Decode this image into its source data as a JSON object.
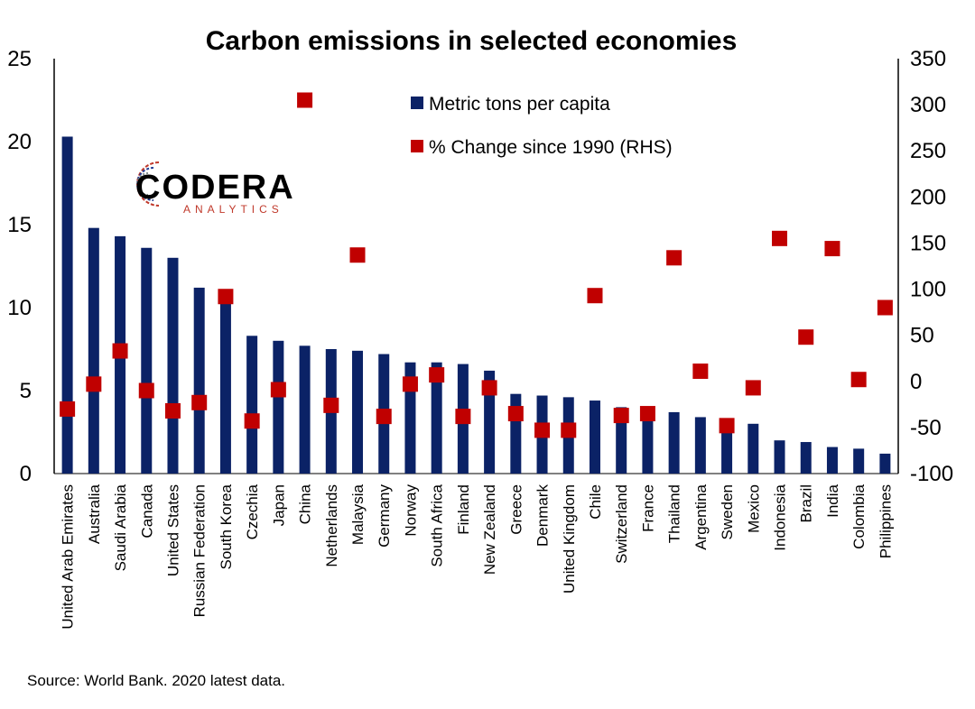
{
  "chart_data": {
    "type": "bar",
    "title": "Carbon emissions in selected economies",
    "categories": [
      "United Arab Emirates",
      "Australia",
      "Saudi Arabia",
      "Canada",
      "United States",
      "Russian Federation",
      "South Korea",
      "Czechia",
      "Japan",
      "China",
      "Netherlands",
      "Malaysia",
      "Germany",
      "Norway",
      "South Africa",
      "Finland",
      "New Zealand",
      "Greece",
      "Denmark",
      "United Kingdom",
      "Chile",
      "Switzerland",
      "France",
      "Thailand",
      "Argentina",
      "Sweden",
      "Mexico",
      "Indonesia",
      "Brazil",
      "India",
      "Colombia",
      "Philippines"
    ],
    "series": [
      {
        "name": "Metric tons per capita",
        "type": "bar",
        "axis": "left",
        "color": "#0b2266",
        "values": [
          20.3,
          14.8,
          14.3,
          13.6,
          13.0,
          11.2,
          10.7,
          8.3,
          8.0,
          7.7,
          7.5,
          7.4,
          7.2,
          6.7,
          6.7,
          6.6,
          6.2,
          4.8,
          4.7,
          4.6,
          4.4,
          4.0,
          3.8,
          3.7,
          3.4,
          3.1,
          3.0,
          2.0,
          1.9,
          1.6,
          1.5,
          1.2
        ]
      },
      {
        "name": "% Change since 1990 (RHS)",
        "type": "scatter",
        "axis": "right",
        "color": "#c00000",
        "values": [
          -30,
          -3,
          33,
          -10,
          -32,
          -23,
          92,
          -43,
          -9,
          305,
          -26,
          137,
          -38,
          -3,
          7,
          -38,
          -7,
          -35,
          -53,
          -53,
          93,
          -37,
          -35,
          134,
          11,
          -48,
          -7,
          155,
          48,
          144,
          2,
          80
        ]
      }
    ],
    "y_left": {
      "min": 0,
      "max": 25,
      "ticks": [
        "0",
        "5",
        "10",
        "15",
        "20",
        "25"
      ]
    },
    "y_right": {
      "min": -100,
      "max": 350,
      "ticks": [
        "-100",
        "-50",
        "0",
        "50",
        "100",
        "150",
        "200",
        "250",
        "300",
        "350"
      ]
    },
    "grid": false,
    "legend": "top-center"
  },
  "logo": {
    "name": "CODERA",
    "sub": "ANALYTICS"
  },
  "source": "Source: World Bank. 2020 latest data."
}
